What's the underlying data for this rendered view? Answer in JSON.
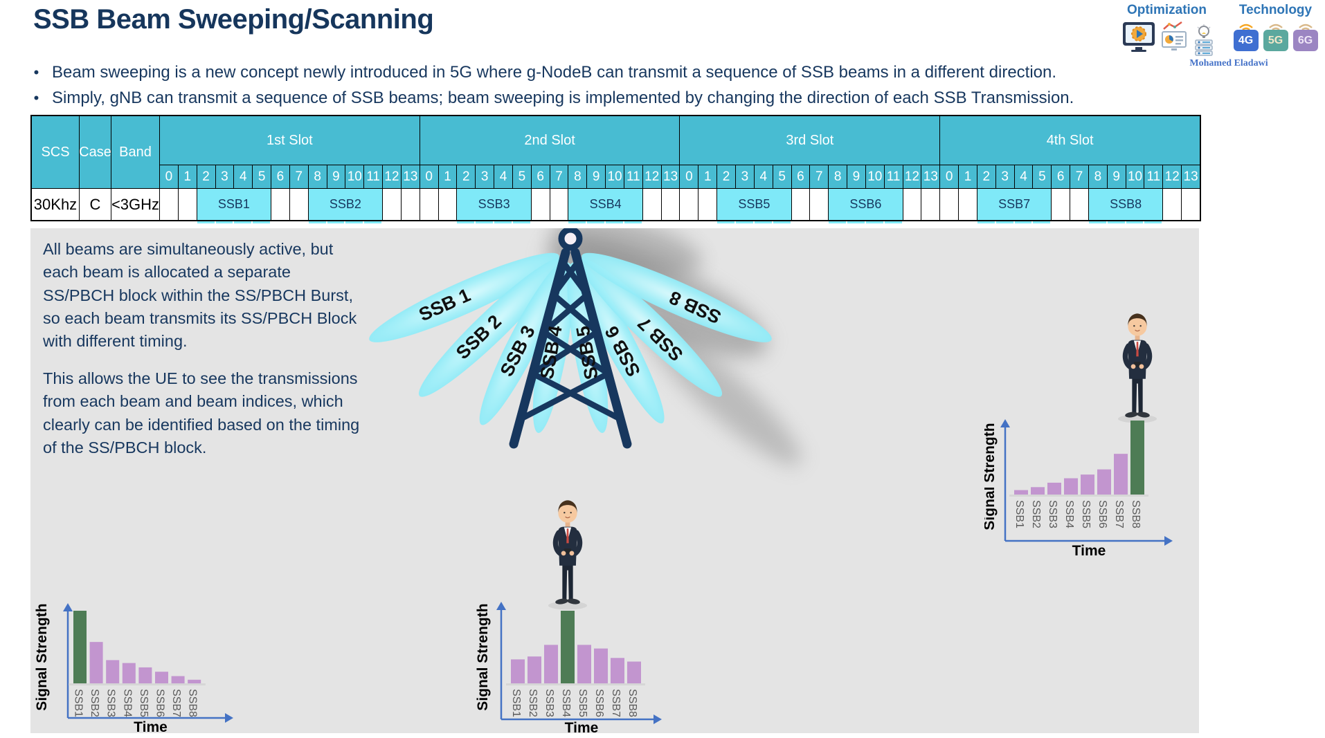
{
  "title": "SSB Beam Sweeping/Scanning",
  "bullets": [
    "Beam sweeping is a new concept newly introduced in 5G where g-NodeB can transmit a sequence of SSB beams in a different direction.",
    "Simply, gNB can transmit a sequence of SSB beams; beam sweeping is implemented by changing the direction of each SSB Transmission."
  ],
  "branding": {
    "optimization_label": "Optimization",
    "technology_label": "Technology",
    "author": "Mohamed Eladawi",
    "badges": [
      "4G",
      "5G",
      "6G"
    ]
  },
  "table": {
    "corner_headers": [
      "SCS",
      "Case",
      "Band"
    ],
    "slots": [
      "1st Slot",
      "2nd Slot",
      "3rd Slot",
      "4th Slot"
    ],
    "symbols_per_slot": 14,
    "row": {
      "scs": "30Khz",
      "case": "C",
      "band": "<3GHz"
    },
    "ssb_blocks": [
      {
        "label": "SSB1",
        "slot": 0,
        "start": 2,
        "end": 5
      },
      {
        "label": "SSB2",
        "slot": 0,
        "start": 8,
        "end": 11
      },
      {
        "label": "SSB3",
        "slot": 1,
        "start": 2,
        "end": 5
      },
      {
        "label": "SSB4",
        "slot": 1,
        "start": 8,
        "end": 11
      },
      {
        "label": "SSB5",
        "slot": 2,
        "start": 2,
        "end": 5
      },
      {
        "label": "SSB6",
        "slot": 2,
        "start": 8,
        "end": 11
      },
      {
        "label": "SSB7",
        "slot": 3,
        "start": 2,
        "end": 5
      },
      {
        "label": "SSB8",
        "slot": 3,
        "start": 8,
        "end": 11
      }
    ]
  },
  "panel": {
    "paragraphs": [
      "All beams are simultaneously active, but each beam is allocated a separate SS/PBCH block within the SS/PBCH Burst, so each beam transmits its SS/PBCH Block with different timing.",
      "This allows the UE to see the transmissions from each beam and beam indices, which clearly can be identified based on the timing of the SS/PBCH block."
    ],
    "beams": [
      "SSB 1",
      "SSB 2",
      "SSB 3",
      "SSB 4",
      "SSB 5",
      "SSB 6",
      "SSB 7",
      "SSB 8"
    ]
  },
  "chart_data": [
    {
      "id": "chart-left",
      "type": "bar",
      "title": "UE near beam 1: received signal strength per SSB",
      "categories": [
        "SSB1",
        "SSB2",
        "SSB3",
        "SSB4",
        "SSB5",
        "SSB6",
        "SSB7",
        "SSB8"
      ],
      "values": [
        1.0,
        0.57,
        0.32,
        0.28,
        0.22,
        0.16,
        0.1,
        0.05
      ],
      "highlight_index": 0,
      "xlabel": "Time",
      "ylabel": "Signal Strength",
      "ylim": [
        0,
        1
      ],
      "grid": false,
      "bar_color": "#c295cf",
      "highlight_color": "#4e7c55",
      "axis_color": "#4472c4"
    },
    {
      "id": "chart-middle",
      "type": "bar",
      "title": "UE under beam 4: received signal strength per SSB",
      "categories": [
        "SSB1",
        "SSB2",
        "SSB3",
        "SSB4",
        "SSB5",
        "SSB6",
        "SSB7",
        "SSB8"
      ],
      "values": [
        0.33,
        0.37,
        0.53,
        1.0,
        0.53,
        0.48,
        0.35,
        0.3
      ],
      "highlight_index": 3,
      "xlabel": "Time",
      "ylabel": "Signal Strength",
      "ylim": [
        0,
        1
      ],
      "grid": false,
      "bar_color": "#c295cf",
      "highlight_color": "#4e7c55",
      "axis_color": "#4472c4"
    },
    {
      "id": "chart-right",
      "type": "bar",
      "title": "UE near beam 8: received signal strength per SSB",
      "categories": [
        "SSB1",
        "SSB2",
        "SSB3",
        "SSB4",
        "SSB5",
        "SSB6",
        "SSB7",
        "SSB8"
      ],
      "values": [
        0.06,
        0.1,
        0.16,
        0.22,
        0.27,
        0.34,
        0.55,
        1.0
      ],
      "highlight_index": 7,
      "xlabel": "Time",
      "ylabel": "Signal Strength",
      "ylim": [
        0,
        1
      ],
      "grid": false,
      "bar_color": "#c295cf",
      "highlight_color": "#4e7c55",
      "axis_color": "#4472c4"
    }
  ],
  "colors": {
    "navy_text": "#17375e",
    "table_header_teal": "#48bcd2",
    "ssb_block_cyan": "#7fe9f8",
    "panel_gray": "#e4e4e4",
    "chart_purple": "#c295cf",
    "chart_green": "#4e7c55",
    "axis_blue": "#4472c4",
    "beam_cyan": "#8fe9f7",
    "tower_navy": "#17375e"
  }
}
